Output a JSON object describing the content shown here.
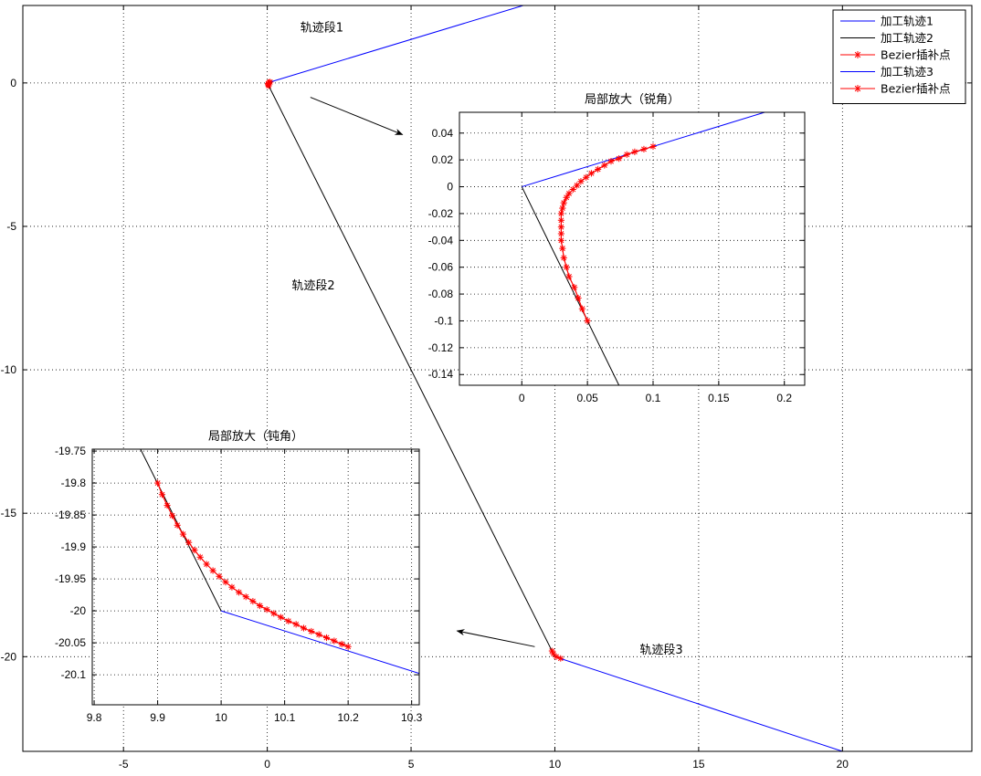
{
  "chart_data": [
    {
      "type": "line",
      "id": "main",
      "xlim": [
        -8.5,
        24.5
      ],
      "ylim": [
        -23.3,
        2.7
      ],
      "xticks": [
        -5,
        0,
        5,
        10,
        15,
        20
      ],
      "yticks": [
        0,
        -5,
        -10,
        -15,
        -20
      ],
      "grid": true,
      "series": [
        {
          "name": "加工轨迹1",
          "color": "#0000ff",
          "points": [
            [
              0,
              0
            ],
            [
              8.9,
              2.7
            ]
          ]
        },
        {
          "name": "加工轨迹2",
          "color": "#000000",
          "points": [
            [
              0,
              0
            ],
            [
              10,
              -20
            ]
          ]
        },
        {
          "name": "加工轨迹3",
          "color": "#0000ff",
          "points": [
            [
              10,
              -20
            ],
            [
              20,
              -23.3
            ]
          ]
        },
        {
          "name": "Bezier插补点",
          "color": "#ff0000",
          "marker": "*",
          "points": [
            [
              0.05,
              -0.1
            ],
            [
              0.03,
              -0.06
            ],
            [
              0.03,
              -0.02
            ],
            [
              0.06,
              0.02
            ],
            [
              0.1,
              0.03
            ]
          ]
        },
        {
          "name": "Bezier插补点",
          "color": "#ff0000",
          "marker": "*",
          "points": [
            [
              9.9,
              -19.8
            ],
            [
              9.95,
              -19.9
            ],
            [
              10.05,
              -20.0
            ],
            [
              10.2,
              -20.06
            ]
          ]
        }
      ],
      "annotations": [
        {
          "text": "轨迹段1",
          "x": 1.9,
          "y": 1.8
        },
        {
          "text": "轨迹段2",
          "x": 1.6,
          "y": -7.2
        },
        {
          "text": "轨迹段3",
          "x": 13.7,
          "y": -19.9
        }
      ],
      "arrows": [
        {
          "from": [
            1.5,
            -0.5
          ],
          "to": [
            4.7,
            -1.8
          ]
        },
        {
          "from": [
            9.3,
            -19.65
          ],
          "to": [
            6.6,
            -19.1
          ]
        }
      ],
      "legend": {
        "placement": "top-right",
        "entries": [
          {
            "label": "加工轨迹1",
            "color": "#0000ff",
            "marker": ""
          },
          {
            "label": "加工轨迹2",
            "color": "#000000",
            "marker": ""
          },
          {
            "label": "Bezier插补点",
            "color": "#ff0000",
            "marker": "*"
          },
          {
            "label": "加工轨迹3",
            "color": "#0000ff",
            "marker": ""
          },
          {
            "label": "Bezier插补点",
            "color": "#ff0000",
            "marker": "*"
          }
        ]
      }
    },
    {
      "type": "line",
      "id": "inset_sharp",
      "title": "局部放大（锐角）",
      "xlim": [
        -0.0475,
        0.2155
      ],
      "ylim": [
        -0.148,
        0.0555
      ],
      "xticks": [
        0,
        0.05,
        0.1,
        0.15,
        0.2
      ],
      "xtick_labels": [
        "0",
        "0.05",
        "0.1",
        "0.15",
        "0.2"
      ],
      "yticks": [
        0.04,
        0.02,
        0,
        -0.02,
        -0.04,
        -0.06,
        -0.08,
        -0.1,
        -0.12,
        -0.14
      ],
      "ytick_labels": [
        "0.04",
        "0.02",
        "0",
        "-0.02",
        "-0.04",
        "-0.06",
        "-0.08",
        "-0.1",
        "-0.12",
        "-0.14"
      ],
      "grid": true,
      "series": [
        {
          "name": "",
          "color": "#0000ff",
          "points": [
            [
              0,
              0
            ],
            [
              0.185,
              0.0555
            ]
          ]
        },
        {
          "name": "",
          "color": "#000000",
          "points": [
            [
              0,
              0
            ],
            [
              0.074,
              -0.148
            ]
          ]
        },
        {
          "name": "",
          "color": "#ff0000",
          "marker": "*",
          "points": [
            [
              0.05,
              -0.1
            ],
            [
              0.046,
              -0.091
            ],
            [
              0.043,
              -0.083
            ],
            [
              0.04,
              -0.075
            ],
            [
              0.036,
              -0.067
            ],
            [
              0.034,
              -0.06
            ],
            [
              0.032,
              -0.053
            ],
            [
              0.031,
              -0.046
            ],
            [
              0.03,
              -0.04
            ],
            [
              0.03,
              -0.035
            ],
            [
              0.03,
              -0.03
            ],
            [
              0.03,
              -0.025
            ],
            [
              0.03,
              -0.02
            ],
            [
              0.031,
              -0.016
            ],
            [
              0.032,
              -0.012
            ],
            [
              0.034,
              -0.008
            ],
            [
              0.036,
              -0.005
            ],
            [
              0.039,
              -0.002
            ],
            [
              0.042,
              0.001
            ],
            [
              0.045,
              0.004
            ],
            [
              0.049,
              0.007
            ],
            [
              0.053,
              0.01
            ],
            [
              0.058,
              0.013
            ],
            [
              0.063,
              0.016
            ],
            [
              0.068,
              0.019
            ],
            [
              0.074,
              0.021
            ],
            [
              0.08,
              0.024
            ],
            [
              0.086,
              0.026
            ],
            [
              0.093,
              0.028
            ],
            [
              0.1,
              0.03
            ]
          ]
        }
      ]
    },
    {
      "type": "line",
      "id": "inset_obtuse",
      "title": "局部放大（钝角）",
      "xlim": [
        9.797,
        10.312
      ],
      "ylim": [
        -20.147,
        -19.747
      ],
      "xticks": [
        9.8,
        9.9,
        10,
        10.1,
        10.2,
        10.3
      ],
      "xtick_labels": [
        "9.8",
        "9.9",
        "10",
        "10.1",
        "10.2",
        "10.3"
      ],
      "yticks": [
        -19.75,
        -19.8,
        -19.85,
        -19.9,
        -19.95,
        -20,
        -20.05,
        -20.1
      ],
      "ytick_labels": [
        "-19.75",
        "-19.8",
        "-19.85",
        "-19.9",
        "-19.95",
        "-20",
        "-20.05",
        "-20.1"
      ],
      "grid": true,
      "series": [
        {
          "name": "",
          "color": "#000000",
          "points": [
            [
              9.873,
              -19.747
            ],
            [
              10,
              -20
            ]
          ]
        },
        {
          "name": "",
          "color": "#0000ff",
          "points": [
            [
              10,
              -20
            ],
            [
              10.312,
              -20.098
            ]
          ]
        },
        {
          "name": "",
          "color": "#ff0000",
          "marker": "*",
          "points": [
            [
              9.9,
              -19.8
            ],
            [
              9.907,
              -19.818
            ],
            [
              9.915,
              -19.835
            ],
            [
              9.923,
              -19.851
            ],
            [
              9.931,
              -19.866
            ],
            [
              9.94,
              -19.88
            ],
            [
              9.949,
              -19.893
            ],
            [
              9.958,
              -19.905
            ],
            [
              9.967,
              -19.916
            ],
            [
              9.977,
              -19.927
            ],
            [
              9.987,
              -19.937
            ],
            [
              9.997,
              -19.946
            ],
            [
              10.007,
              -19.955
            ],
            [
              10.017,
              -19.963
            ],
            [
              10.028,
              -19.971
            ],
            [
              10.039,
              -19.978
            ],
            [
              10.05,
              -19.985
            ],
            [
              10.061,
              -19.992
            ],
            [
              10.072,
              -19.998
            ],
            [
              10.083,
              -20.004
            ],
            [
              10.094,
              -20.01
            ],
            [
              10.106,
              -20.016
            ],
            [
              10.118,
              -20.021
            ],
            [
              10.13,
              -20.027
            ],
            [
              10.142,
              -20.032
            ],
            [
              10.154,
              -20.037
            ],
            [
              10.166,
              -20.042
            ],
            [
              10.178,
              -20.047
            ],
            [
              10.19,
              -20.052
            ],
            [
              10.2,
              -20.056
            ]
          ]
        }
      ]
    }
  ]
}
